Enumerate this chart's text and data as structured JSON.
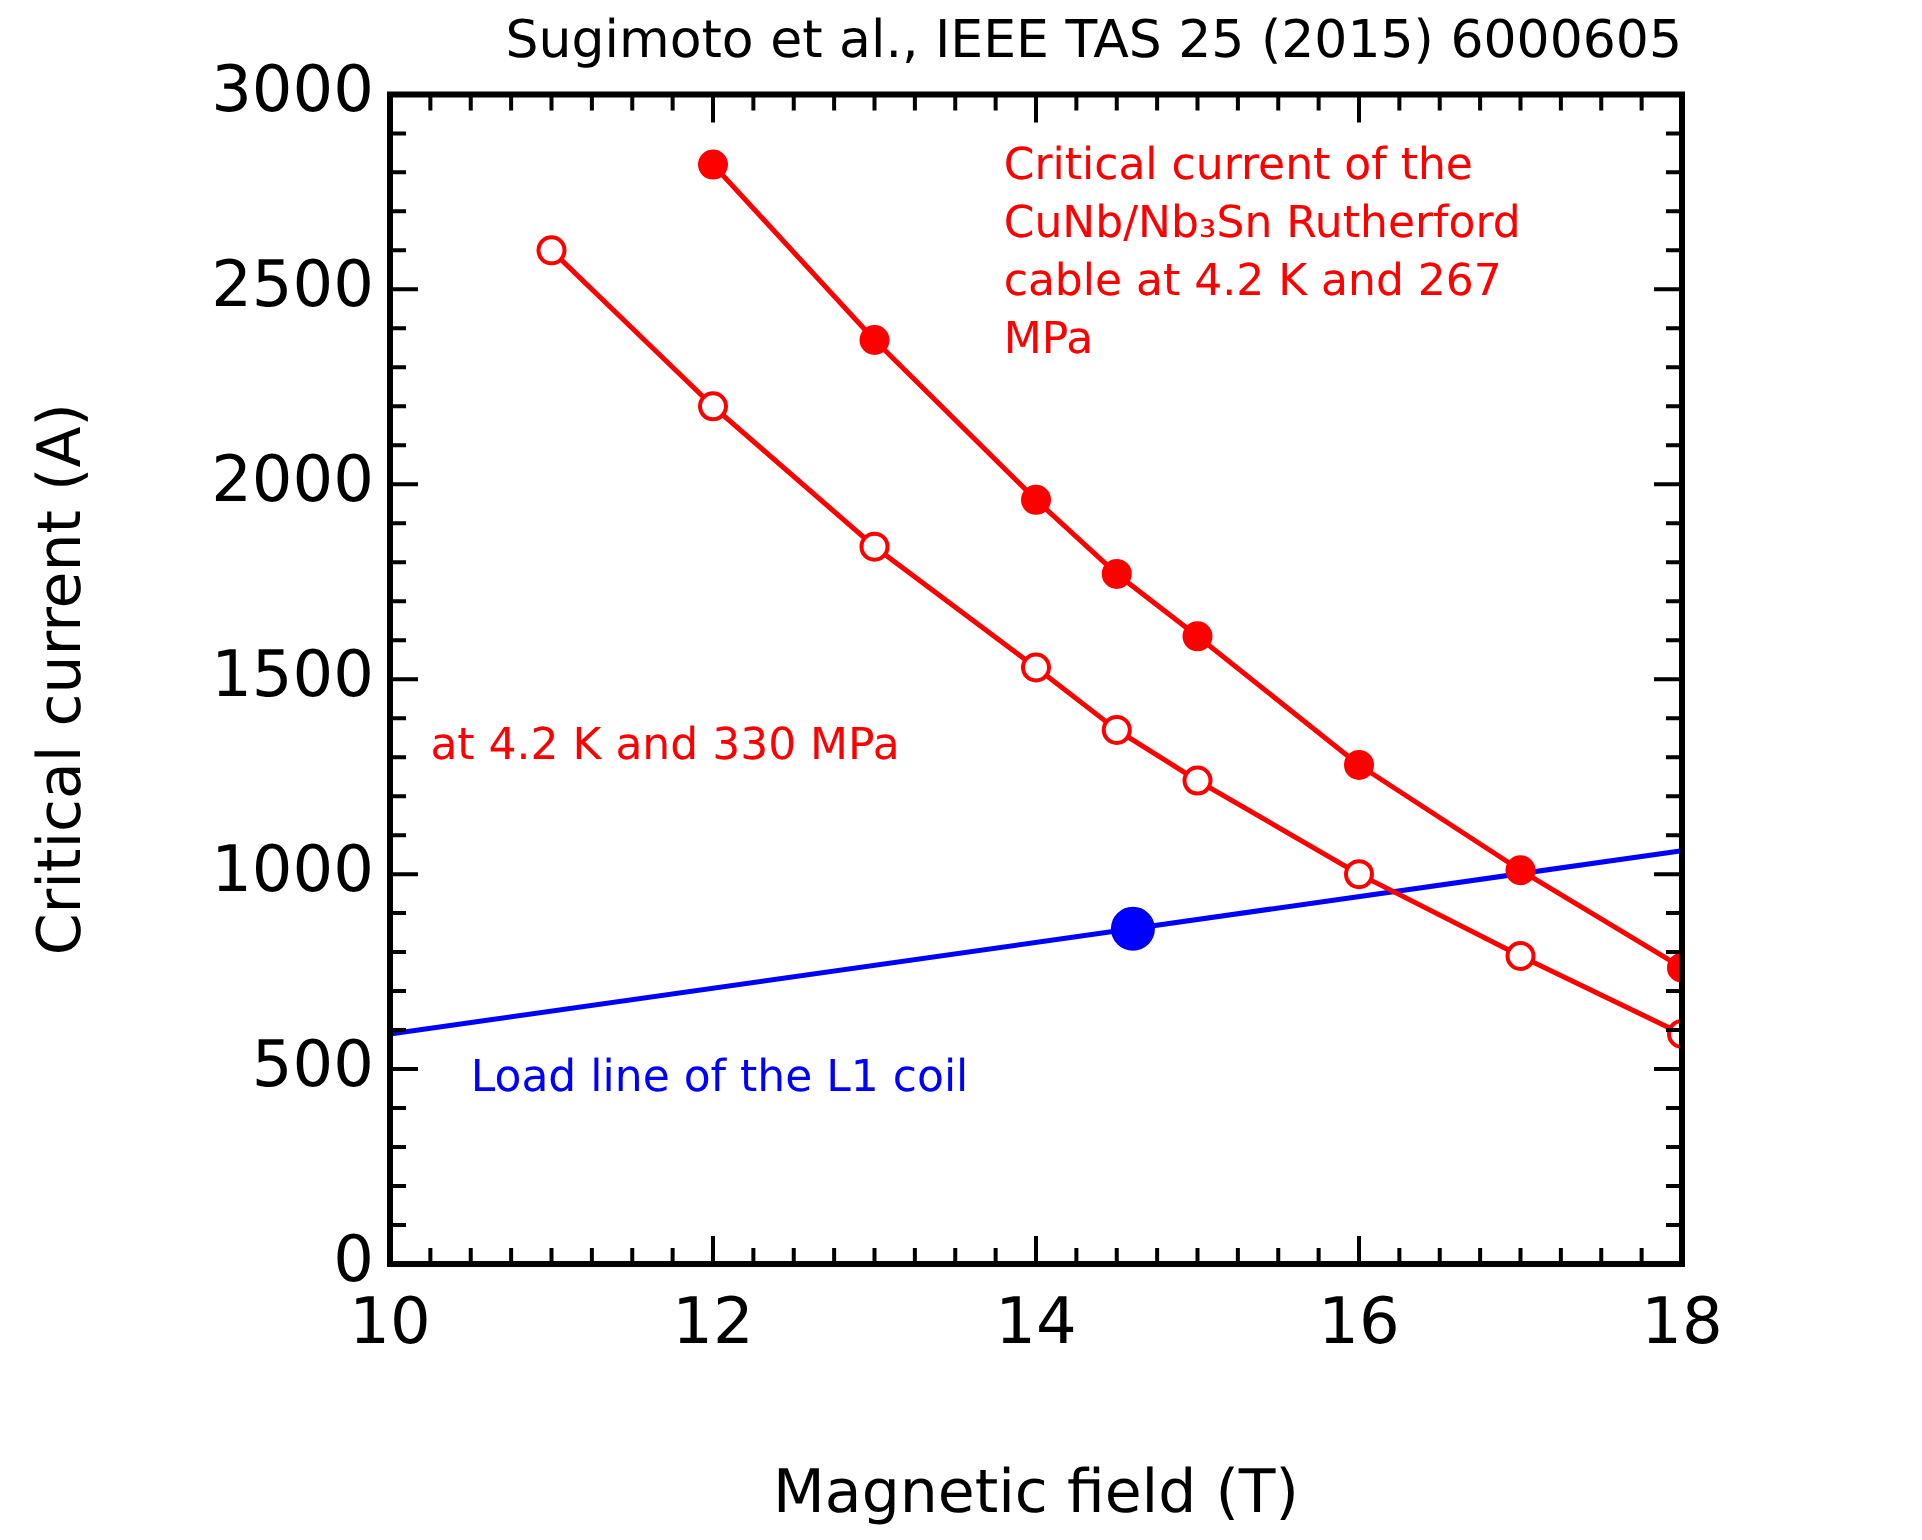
{
  "chart_data": {
    "type": "line",
    "title": "Sugimoto et al., IEEE TAS 25 (2015) 6000605",
    "xlabel": "Magnetic field (T)",
    "ylabel": "Critical current (A)",
    "xlim": [
      10,
      18
    ],
    "xticks": [
      10,
      12,
      14,
      16,
      18
    ],
    "ylim": [
      0,
      3000
    ],
    "yticks": [
      0,
      500,
      1000,
      1500,
      2000,
      2500,
      3000
    ],
    "grid": false,
    "legend": false,
    "line_style": "solid",
    "series": [
      {
        "name": "Critical current of the CuNb/Nb₃Sn Rutherford cable at 4.2 K and 267 MPa",
        "color": "#ff0000",
        "marker": "circle",
        "x": [
          12,
          13,
          14,
          14.5,
          15,
          16,
          17,
          18
        ],
        "values": [
          2820,
          2370,
          1960,
          1770,
          1610,
          1280,
          1010,
          760
        ]
      },
      {
        "name": "at 4.2 K and 330 MPa",
        "color": "#ff0000",
        "marker": "circle",
        "x": [
          11,
          12,
          13,
          14,
          14.5,
          15,
          16,
          17,
          18
        ],
        "values": [
          2600,
          2200,
          1840,
          1530,
          1370,
          1240,
          1000,
          790,
          590
        ]
      },
      {
        "name": "Load line of the L1 coil",
        "color": "#0000ff",
        "marker": "none",
        "x": [
          10,
          18
        ],
        "values": [
          590,
          1060
        ]
      },
      {
        "type": "scatter",
        "color": "#0000ff",
        "marker": "circle",
        "x": [
          14.6
        ],
        "values": [
          860
        ]
      }
    ]
  }
}
